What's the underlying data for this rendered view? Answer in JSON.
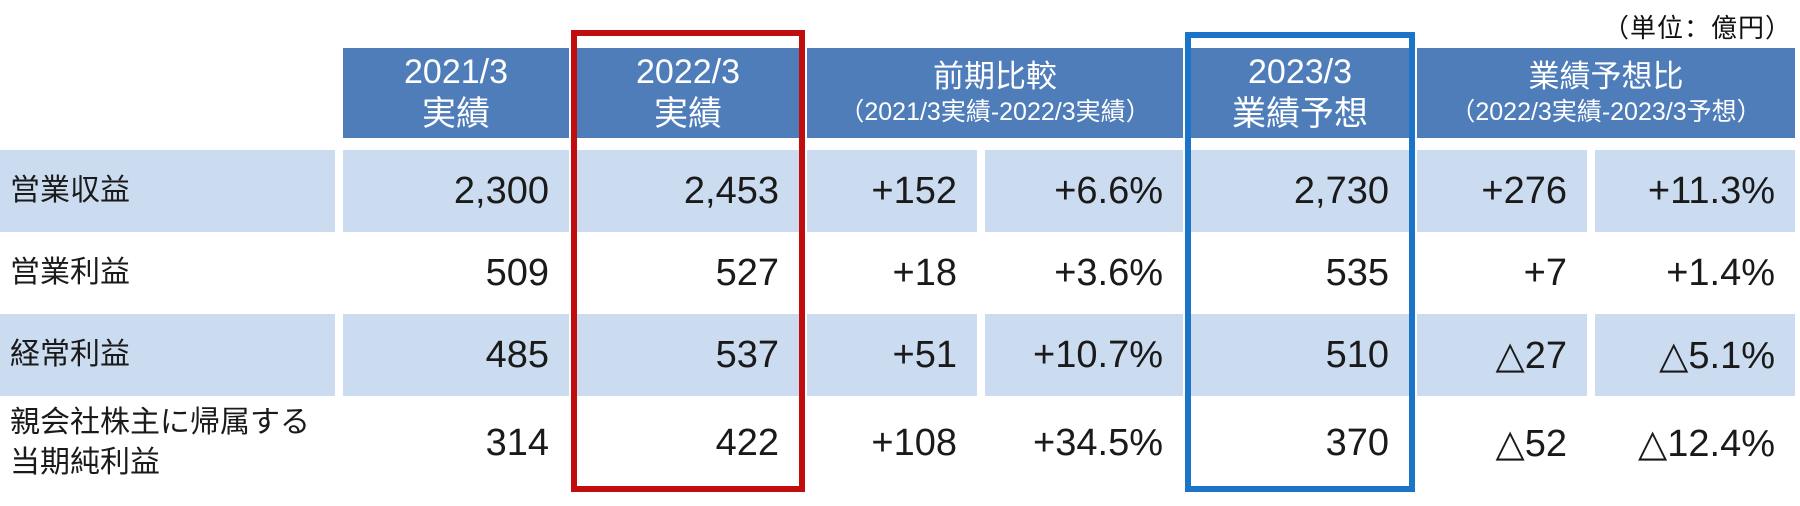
{
  "unit_label": "（単位：億円）",
  "colors": {
    "header_bg": "#4E7DBA",
    "row_band_bg": "#CBDCF0",
    "highlight_red": "#C00E0E",
    "highlight_blue": "#1B74C8"
  },
  "table": {
    "headers": [
      {
        "id": "2021-actual",
        "line1": "2021/3",
        "line2": "実績"
      },
      {
        "id": "2022-actual",
        "line1": "2022/3",
        "line2": "実績",
        "highlight": "red"
      },
      {
        "id": "yoy-compare",
        "line1": "前期比較",
        "line2": "（2021/3実績-2022/3実績）"
      },
      {
        "id": "2023-forecast",
        "line1": "2023/3",
        "line2": "業績予想",
        "highlight": "blue"
      },
      {
        "id": "vs-forecast",
        "line1": "業績予想比",
        "line2": "（2022/3実績-2023/3予想）"
      }
    ],
    "rows": [
      {
        "label": "営業収益",
        "values": [
          "2,300",
          "2,453",
          "+152",
          "+6.6%",
          "2,730",
          "+276",
          "+11.3%"
        ]
      },
      {
        "label": "営業利益",
        "values": [
          "509",
          "527",
          "+18",
          "+3.6%",
          "535",
          "+7",
          "+1.4%"
        ]
      },
      {
        "label": "経常利益",
        "values": [
          "485",
          "537",
          "+51",
          "+10.7%",
          "510",
          "△27",
          "△5.1%"
        ]
      },
      {
        "label": "親会社株主に帰属する当期純利益",
        "values": [
          "314",
          "422",
          "+108",
          "+34.5%",
          "370",
          "△52",
          "△12.4%"
        ]
      }
    ]
  }
}
